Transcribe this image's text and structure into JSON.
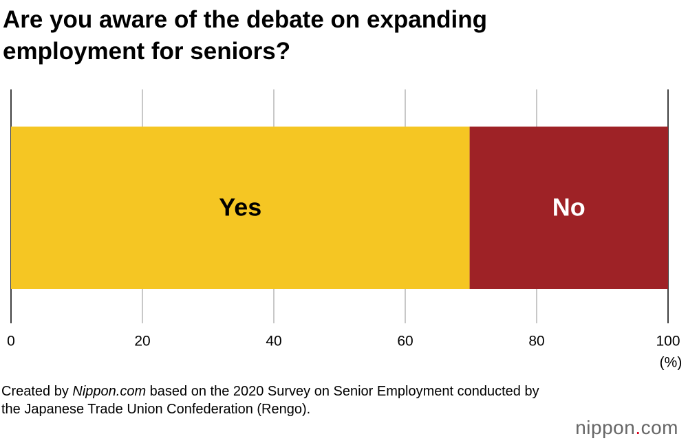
{
  "chart_data": {
    "type": "stacked-bar-horizontal",
    "title": "Are you aware of the debate on expanding employment for seniors?",
    "categories": [
      null
    ],
    "series": [
      {
        "name": "Yes",
        "color": "#f5c623",
        "values": [
          69.8
        ]
      },
      {
        "name": "No",
        "color": "#9e2226",
        "values": [
          30.2
        ]
      }
    ],
    "xlim": [
      0,
      100
    ],
    "xticks": [
      0,
      20,
      40,
      60,
      80,
      100
    ],
    "x_unit": "(%)",
    "grid": true,
    "note": [
      "Created by ",
      "Nippon.com",
      " based on the 2020 Survey on Senior Employment conducted by the Japanese Trade Union Confederation (Rengo)."
    ]
  },
  "logo": [
    "nippon",
    ".",
    "com"
  ]
}
